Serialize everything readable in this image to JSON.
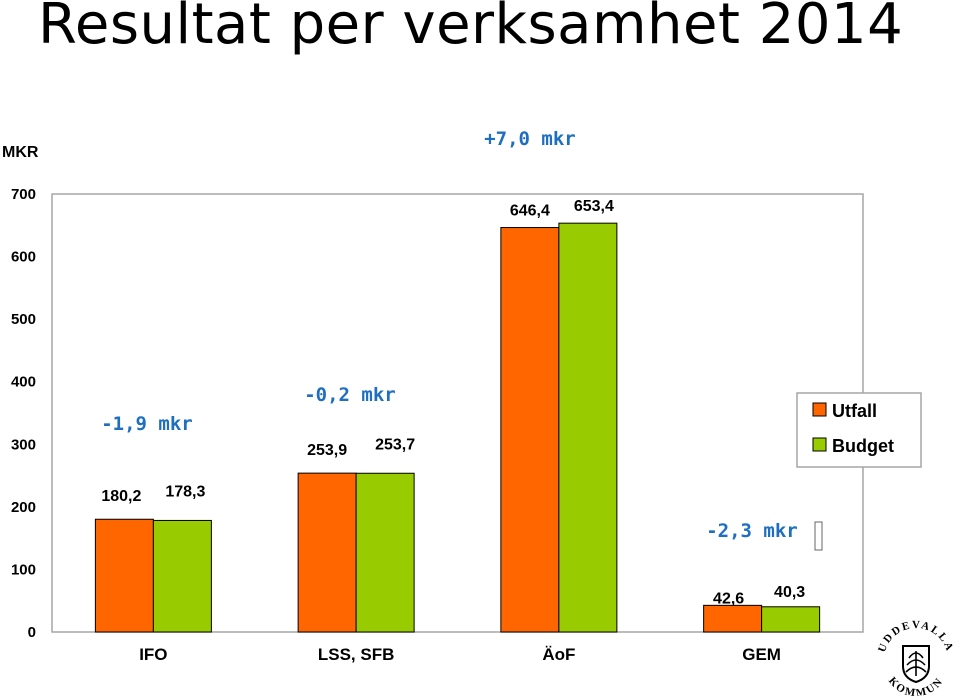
{
  "title": "Resultat per verksamhet 2014",
  "colors": {
    "utfall": "#ff6600",
    "budget": "#99cc00",
    "diff_text": "#1f6fc1",
    "plot_border": "#a6a6a6"
  },
  "chart_data": {
    "type": "bar",
    "title": "",
    "xlabel": "",
    "ylabel": "MKR",
    "ylim": [
      0,
      700
    ],
    "yticks": [
      0,
      100,
      200,
      300,
      400,
      500,
      600,
      700
    ],
    "grid": false,
    "legend_position": "right",
    "categories": [
      "IFO",
      "LSS, SFB",
      "ÄoF",
      "GEM"
    ],
    "series": [
      {
        "name": "Utfall",
        "values": [
          180.2,
          253.9,
          646.4,
          42.6
        ],
        "labels": [
          "180,2",
          "253,9",
          "646,4",
          "42,6"
        ]
      },
      {
        "name": "Budget",
        "values": [
          178.3,
          253.7,
          653.4,
          40.3
        ],
        "labels": [
          "178,3",
          "253,7",
          "653,4",
          "40,3"
        ]
      }
    ],
    "annotations": [
      "-1,9 mkr",
      "-0,2 mkr",
      "+7,0 mkr",
      "-2,3 mkr"
    ]
  },
  "logo": {
    "text_top": "UDDEVALLA",
    "text_bottom": "KOMMUN"
  }
}
